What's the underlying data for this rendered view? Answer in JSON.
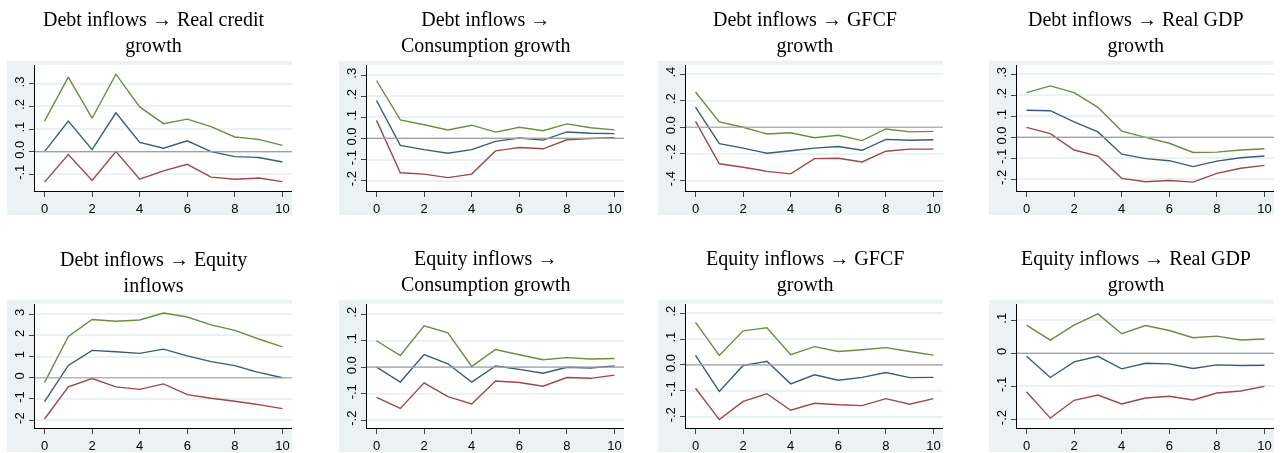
{
  "chart_data": [
    {
      "type": "line",
      "title": "Debt inflows → Real credit\ngrowth",
      "x": [
        0,
        1,
        2,
        3,
        4,
        5,
        6,
        7,
        8,
        9,
        10
      ],
      "xlim": [
        -0.4,
        10.4
      ],
      "xticks": [
        0,
        2,
        4,
        6,
        8,
        10
      ],
      "ylim": [
        -0.175,
        0.385
      ],
      "yticks": [
        {
          "value": -0.1,
          "label": "-.1"
        },
        {
          "value": 0,
          "label": "0.0"
        },
        {
          "value": 0.1,
          "label": ".1"
        },
        {
          "value": 0.2,
          "label": ".2"
        },
        {
          "value": 0.3,
          "label": ".3"
        }
      ],
      "grid": "y",
      "ref_lines": [
        {
          "axis": "y",
          "value": 0,
          "color": "#a0a0a0"
        }
      ],
      "series": [
        {
          "color": "#6b8e3e",
          "values": [
            0.135,
            0.33,
            0.148,
            0.343,
            0.198,
            0.124,
            0.144,
            0.111,
            0.065,
            0.054,
            0.028
          ]
        },
        {
          "color": "#3c5a80",
          "values": [
            0,
            0.135,
            0.009,
            0.172,
            0.041,
            0.015,
            0.048,
            0,
            -0.022,
            -0.026,
            -0.046
          ]
        },
        {
          "color": "#a0474a",
          "values": [
            -0.135,
            -0.013,
            -0.128,
            0,
            -0.122,
            -0.085,
            -0.056,
            -0.113,
            -0.122,
            -0.117,
            -0.133
          ]
        }
      ]
    },
    {
      "type": "line",
      "title": "Debt inflows →\nConsumption growth",
      "x": [
        0,
        1,
        2,
        3,
        4,
        5,
        6,
        7,
        8,
        9,
        10
      ],
      "xlim": [
        -0.4,
        10.4
      ],
      "xticks": [
        0,
        2,
        4,
        6,
        8,
        10
      ],
      "ylim": [
        -0.25,
        0.35
      ],
      "yticks": [
        {
          "value": -0.2,
          "label": "-.2"
        },
        {
          "value": -0.1,
          "label": "-.1"
        },
        {
          "value": 0,
          "label": "0.0"
        },
        {
          "value": 0.1,
          "label": ".1"
        },
        {
          "value": 0.2,
          "label": ".2"
        },
        {
          "value": 0.3,
          "label": ".3"
        }
      ],
      "grid": "y",
      "ref_lines": [
        {
          "axis": "y",
          "value": 0,
          "color": "#a0a0a0"
        }
      ],
      "series": [
        {
          "color": "#6b8e3e",
          "values": [
            0.275,
            0.088,
            0.065,
            0.04,
            0.063,
            0.03,
            0.053,
            0.037,
            0.069,
            0.051,
            0.041
          ]
        },
        {
          "color": "#3c5a80",
          "values": [
            0.18,
            -0.033,
            -0.053,
            -0.07,
            -0.053,
            -0.014,
            0.002,
            -0.008,
            0.031,
            0.025,
            0.023
          ]
        },
        {
          "color": "#a0474a",
          "values": [
            0.086,
            -0.163,
            -0.169,
            -0.186,
            -0.169,
            -0.059,
            -0.043,
            -0.049,
            -0.006,
            0,
            0.004
          ]
        }
      ]
    },
    {
      "type": "line",
      "title": "Debt inflows → GFCF\ngrowth",
      "x": [
        0,
        1,
        2,
        3,
        4,
        5,
        6,
        7,
        8,
        9,
        10
      ],
      "xlim": [
        -0.4,
        10.4
      ],
      "xticks": [
        0,
        2,
        4,
        6,
        8,
        10
      ],
      "ylim": [
        -0.48,
        0.47
      ],
      "yticks": [
        {
          "value": -0.4,
          "label": "-.4"
        },
        {
          "value": -0.2,
          "label": "-.2"
        },
        {
          "value": 0,
          "label": "0.0"
        },
        {
          "value": 0.2,
          "label": ".2"
        },
        {
          "value": 0.4,
          "label": ".4"
        }
      ],
      "grid": "y",
      "ref_lines": [
        {
          "axis": "y",
          "value": 0,
          "color": "#a0a0a0"
        }
      ],
      "series": [
        {
          "color": "#6b8e3e",
          "values": [
            0.265,
            0.041,
            0,
            -0.05,
            -0.041,
            -0.079,
            -0.06,
            -0.1,
            -0.013,
            -0.035,
            -0.031
          ]
        },
        {
          "color": "#3c5a80",
          "values": [
            0.151,
            -0.123,
            -0.157,
            -0.195,
            -0.176,
            -0.157,
            -0.145,
            -0.173,
            -0.091,
            -0.098,
            -0.094
          ]
        },
        {
          "color": "#a0474a",
          "values": [
            0.044,
            -0.274,
            -0.3,
            -0.331,
            -0.35,
            -0.236,
            -0.233,
            -0.261,
            -0.18,
            -0.164,
            -0.164
          ]
        }
      ]
    },
    {
      "type": "line",
      "title": "Debt inflows → Real GDP\ngrowth",
      "x": [
        0,
        1,
        2,
        3,
        4,
        5,
        6,
        7,
        8,
        9,
        10
      ],
      "xlim": [
        -0.4,
        10.4
      ],
      "xticks": [
        0,
        2,
        4,
        6,
        8,
        10
      ],
      "ylim": [
        -0.256,
        0.346
      ],
      "yticks": [
        {
          "value": -0.2,
          "label": "-.2"
        },
        {
          "value": -0.1,
          "label": "-.1"
        },
        {
          "value": 0,
          "label": "0.0"
        },
        {
          "value": 0.1,
          "label": ".1"
        },
        {
          "value": 0.2,
          "label": ".2"
        },
        {
          "value": 0.3,
          "label": ".3"
        }
      ],
      "grid": "y",
      "ref_lines": [
        {
          "axis": "y",
          "value": 0,
          "color": "#a0a0a0"
        }
      ],
      "series": [
        {
          "color": "#6b8e3e",
          "values": [
            0.213,
            0.245,
            0.213,
            0.143,
            0.03,
            0,
            -0.028,
            -0.072,
            -0.07,
            -0.06,
            -0.054
          ]
        },
        {
          "color": "#3c5a80",
          "values": [
            0.129,
            0.127,
            0.074,
            0.026,
            -0.08,
            -0.101,
            -0.111,
            -0.139,
            -0.113,
            -0.097,
            -0.089
          ]
        },
        {
          "color": "#a0474a",
          "values": [
            0.048,
            0.018,
            -0.06,
            -0.089,
            -0.195,
            -0.211,
            -0.205,
            -0.213,
            -0.171,
            -0.147,
            -0.133
          ]
        }
      ]
    },
    {
      "type": "line",
      "title": "Debt inflows → Equity\ninflows",
      "x": [
        0,
        1,
        2,
        3,
        4,
        5,
        6,
        7,
        8,
        9,
        10
      ],
      "xlim": [
        -0.4,
        10.4
      ],
      "xticks": [
        0,
        2,
        4,
        6,
        8,
        10
      ],
      "ylim": [
        -2.38,
        3.5
      ],
      "yticks": [
        -2,
        -1,
        0,
        1,
        2,
        3
      ],
      "grid": "y",
      "ref_lines": [
        {
          "axis": "y",
          "value": 0,
          "color": "#a0a0a0"
        }
      ],
      "series": [
        {
          "color": "#6b8e3e",
          "values": [
            -0.23,
            1.95,
            2.75,
            2.67,
            2.73,
            3.06,
            2.87,
            2.5,
            2.24,
            1.83,
            1.46
          ]
        },
        {
          "color": "#3c5a80",
          "values": [
            -1.13,
            0.58,
            1.29,
            1.23,
            1.15,
            1.35,
            1.03,
            0.76,
            0.57,
            0.25,
            0
          ]
        },
        {
          "color": "#a0474a",
          "values": [
            -1.95,
            -0.43,
            -0.04,
            -0.43,
            -0.55,
            -0.29,
            -0.8,
            -0.97,
            -1.11,
            -1.27,
            -1.46
          ]
        }
      ]
    },
    {
      "type": "line",
      "title": "Equity inflows →\nConsumption growth",
      "x": [
        0,
        1,
        2,
        3,
        4,
        5,
        6,
        7,
        8,
        9,
        10
      ],
      "xlim": [
        -0.4,
        10.4
      ],
      "xticks": [
        0,
        2,
        4,
        6,
        8,
        10
      ],
      "ylim": [
        -0.23,
        0.24
      ],
      "yticks": [
        {
          "value": -0.2,
          "label": "-.2"
        },
        {
          "value": -0.1,
          "label": "-.1"
        },
        {
          "value": 0,
          "label": "0.0"
        },
        {
          "value": 0.1,
          "label": ".1"
        },
        {
          "value": 0.2,
          "label": ".2"
        }
      ],
      "grid": "y",
      "ref_lines": [
        {
          "axis": "y",
          "value": 0,
          "color": "#a0a0a0"
        }
      ],
      "series": [
        {
          "color": "#6b8e3e",
          "values": [
            0.1,
            0.044,
            0.156,
            0.13,
            0.003,
            0.067,
            0.047,
            0.028,
            0.036,
            0.031,
            0.033
          ]
        },
        {
          "color": "#3c5a80",
          "values": [
            0,
            -0.056,
            0.048,
            0.013,
            -0.056,
            0.005,
            -0.008,
            -0.023,
            0,
            -0.003,
            0.005
          ]
        },
        {
          "color": "#a0474a",
          "values": [
            -0.114,
            -0.156,
            -0.059,
            -0.111,
            -0.139,
            -0.052,
            -0.058,
            -0.072,
            -0.039,
            -0.042,
            -0.03
          ]
        }
      ]
    },
    {
      "type": "line",
      "title": "Equity inflows → GFCF\ngrowth",
      "x": [
        0,
        1,
        2,
        3,
        4,
        5,
        6,
        7,
        8,
        9,
        10
      ],
      "xlim": [
        -0.4,
        10.4
      ],
      "xticks": [
        0,
        2,
        4,
        6,
        8,
        10
      ],
      "ylim": [
        -0.244,
        0.237
      ],
      "yticks": [
        {
          "value": -0.2,
          "label": "-.2"
        },
        {
          "value": -0.1,
          "label": "-.1"
        },
        {
          "value": 0,
          "label": "0.0"
        },
        {
          "value": 0.1,
          "label": ".1"
        },
        {
          "value": 0.2,
          "label": ".2"
        }
      ],
      "grid": "y",
      "ref_lines": [
        {
          "axis": "y",
          "value": 0,
          "color": "#a0a0a0"
        }
      ],
      "series": [
        {
          "color": "#6b8e3e",
          "values": [
            0.165,
            0.037,
            0.132,
            0.144,
            0.04,
            0.071,
            0.052,
            0.059,
            0.067,
            0.052,
            0.038
          ]
        },
        {
          "color": "#3c5a80",
          "values": [
            0.037,
            -0.102,
            -0.002,
            0.014,
            -0.073,
            -0.038,
            -0.059,
            -0.048,
            -0.029,
            -0.049,
            -0.048
          ]
        },
        {
          "color": "#a0474a",
          "values": [
            -0.09,
            -0.211,
            -0.141,
            -0.111,
            -0.175,
            -0.148,
            -0.154,
            -0.157,
            -0.13,
            -0.152,
            -0.13
          ]
        }
      ]
    },
    {
      "type": "line",
      "title": "Equity inflows → Real GDP\ngrowth",
      "x": [
        0,
        1,
        2,
        3,
        4,
        5,
        6,
        7,
        8,
        9,
        10
      ],
      "xlim": [
        -0.4,
        10.4
      ],
      "xticks": [
        0,
        2,
        4,
        6,
        8,
        10
      ],
      "ylim": [
        -0.226,
        0.15
      ],
      "yticks": [
        {
          "value": -0.2,
          "label": "-.2"
        },
        {
          "value": -0.1,
          "label": "-.1"
        },
        0,
        {
          "value": 0.1,
          "label": ".1"
        }
      ],
      "grid": "y",
      "ref_lines": [
        {
          "axis": "y",
          "value": 0,
          "color": "#a0a0a0"
        }
      ],
      "series": [
        {
          "color": "#6b8e3e",
          "values": [
            0.085,
            0.04,
            0.085,
            0.119,
            0.059,
            0.084,
            0.069,
            0.047,
            0.052,
            0.04,
            0.043
          ]
        },
        {
          "color": "#3c5a80",
          "values": [
            -0.009,
            -0.073,
            -0.026,
            -0.009,
            -0.047,
            -0.03,
            -0.032,
            -0.046,
            -0.035,
            -0.037,
            -0.036
          ]
        },
        {
          "color": "#a0474a",
          "values": [
            -0.116,
            -0.196,
            -0.142,
            -0.126,
            -0.153,
            -0.135,
            -0.13,
            -0.141,
            -0.12,
            -0.114,
            -0.1
          ]
        }
      ]
    }
  ]
}
